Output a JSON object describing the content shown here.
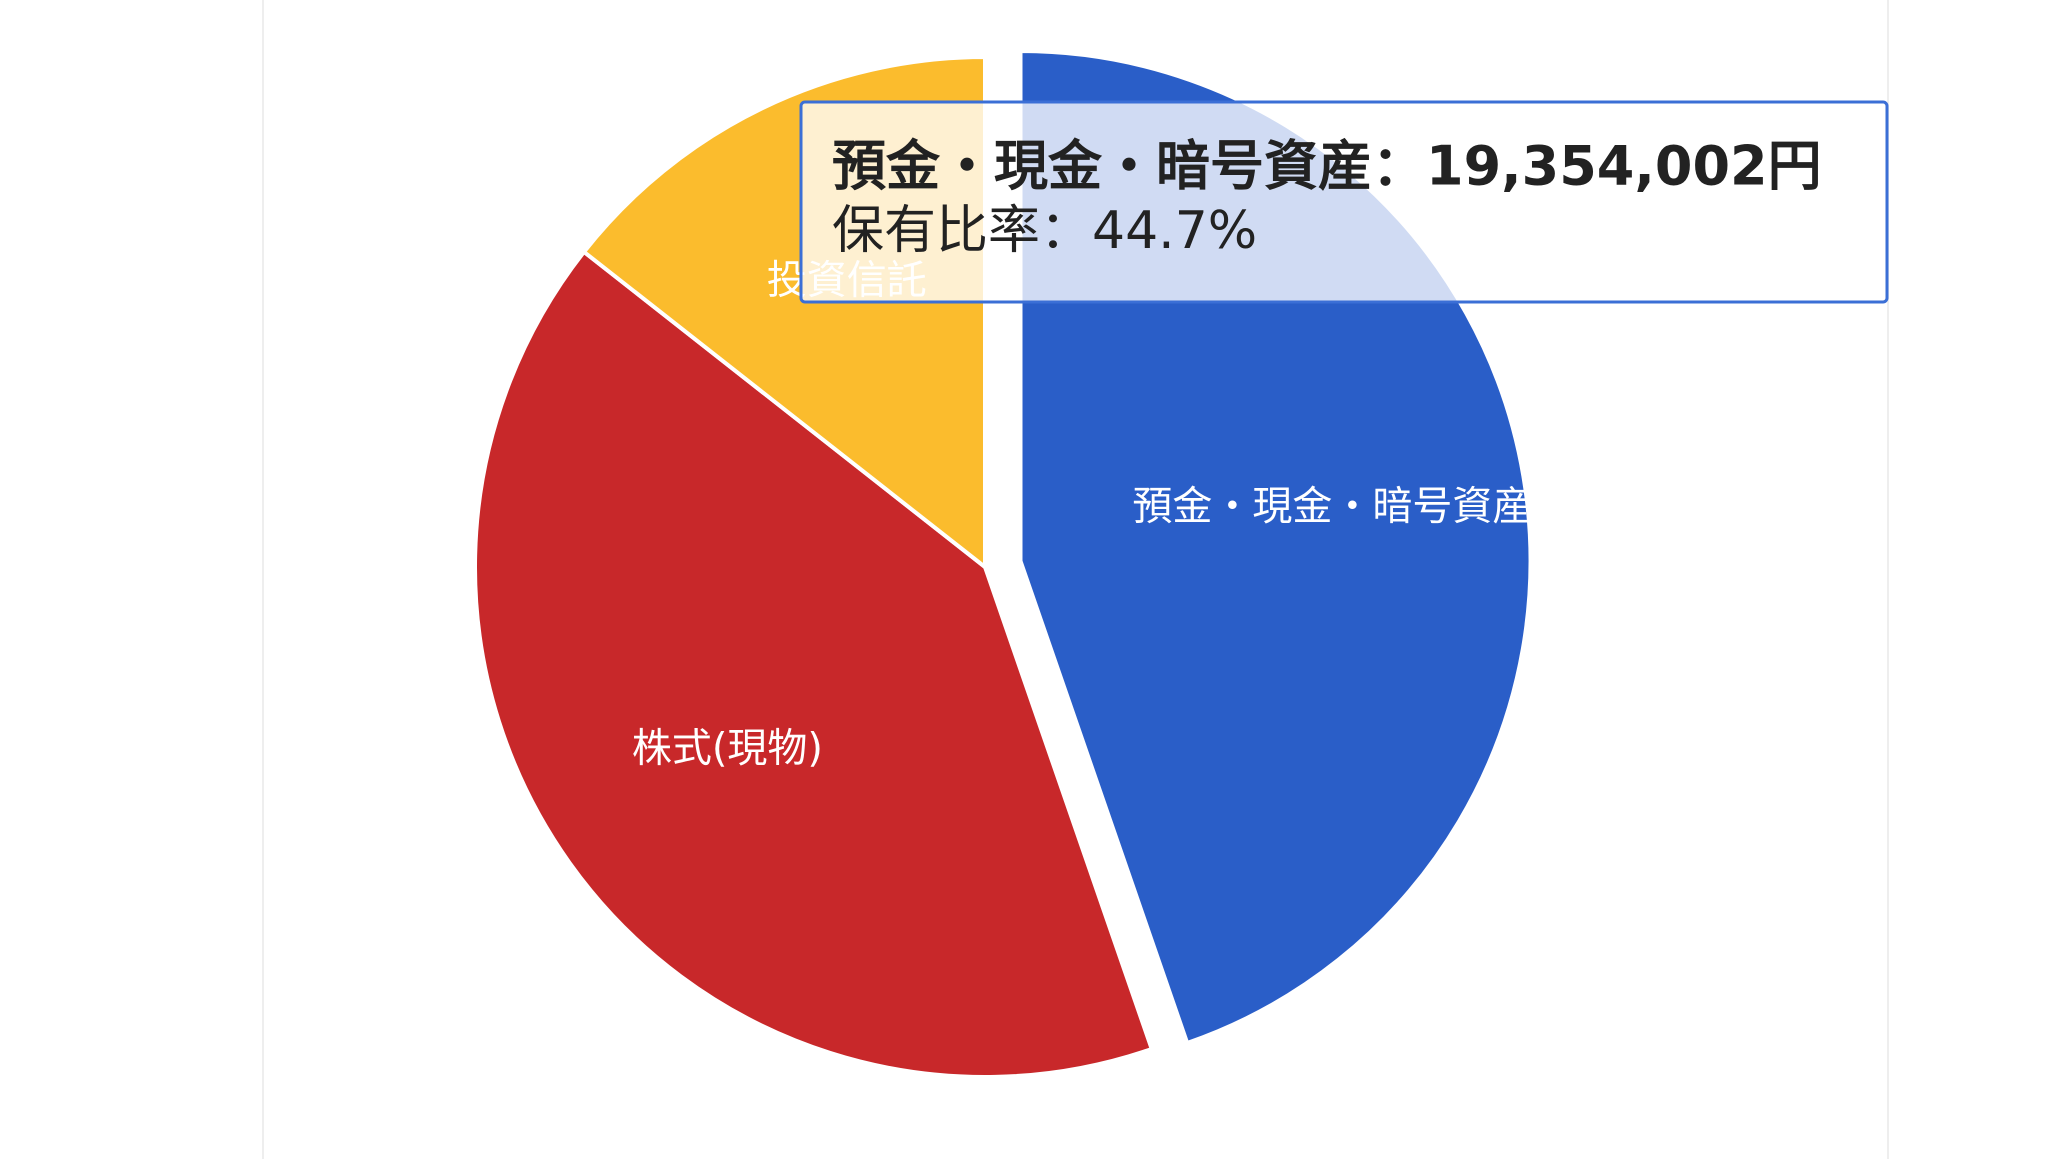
{
  "chart_data": {
    "type": "pie",
    "categories": [
      "預金・現金・暗号資産",
      "株式(現物)",
      "投資信託"
    ],
    "values": [
      44.7,
      40.9,
      14.4
    ],
    "colors": [
      "#2a5ec8",
      "#c8282a",
      "#fbbc2d"
    ],
    "exploded": 0,
    "tooltip": {
      "title": "預金・現金・暗号資産：19,354,002円",
      "ratio": "保有比率：44.7%"
    }
  }
}
